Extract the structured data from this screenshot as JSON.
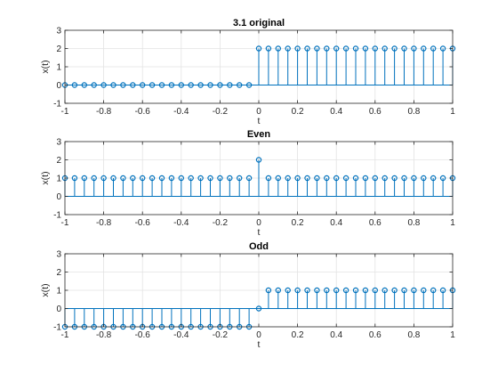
{
  "chart_data": [
    {
      "type": "stem",
      "title": "3.1 original",
      "xlabel": "t",
      "ylabel": "x(t)",
      "xlim": [
        -1,
        1
      ],
      "ylim": [
        -1,
        3
      ],
      "xticks": [
        -1,
        -0.8,
        -0.6,
        -0.4,
        -0.2,
        0,
        0.2,
        0.4,
        0.6,
        0.8,
        1
      ],
      "xtick_labels": [
        "-1",
        "-0.8",
        "-0.6",
        "-0.4",
        "-0.2",
        "0",
        "0.2",
        "0.4",
        "0.6",
        "0.8",
        "1"
      ],
      "yticks": [
        -1,
        0,
        1,
        2,
        3
      ],
      "ytick_labels": [
        "-1",
        "0",
        "1",
        "2",
        "3"
      ],
      "grid": true,
      "color": "#0072BD",
      "series": [
        {
          "x": [
            -1,
            -0.95,
            -0.9,
            -0.85,
            -0.8,
            -0.75,
            -0.7,
            -0.65,
            -0.6,
            -0.55,
            -0.5,
            -0.45,
            -0.4,
            -0.35,
            -0.3,
            -0.25,
            -0.2,
            -0.15,
            -0.1,
            -0.05,
            0,
            0.05,
            0.1,
            0.15,
            0.2,
            0.25,
            0.3,
            0.35,
            0.4,
            0.45,
            0.5,
            0.55,
            0.6,
            0.65,
            0.7,
            0.75,
            0.8,
            0.85,
            0.9,
            0.95,
            1
          ],
          "y": [
            0,
            0,
            0,
            0,
            0,
            0,
            0,
            0,
            0,
            0,
            0,
            0,
            0,
            0,
            0,
            0,
            0,
            0,
            0,
            0,
            2,
            2,
            2,
            2,
            2,
            2,
            2,
            2,
            2,
            2,
            2,
            2,
            2,
            2,
            2,
            2,
            2,
            2,
            2,
            2,
            2
          ]
        }
      ]
    },
    {
      "type": "stem",
      "title": "Even",
      "xlabel": "t",
      "ylabel": "x(t)",
      "xlim": [
        -1,
        1
      ],
      "ylim": [
        -1,
        3
      ],
      "xticks": [
        -1,
        -0.8,
        -0.6,
        -0.4,
        -0.2,
        0,
        0.2,
        0.4,
        0.6,
        0.8,
        1
      ],
      "xtick_labels": [
        "-1",
        "-0.8",
        "-0.6",
        "-0.4",
        "-0.2",
        "0",
        "0.2",
        "0.4",
        "0.6",
        "0.8",
        "1"
      ],
      "yticks": [
        -1,
        0,
        1,
        2,
        3
      ],
      "ytick_labels": [
        "-1",
        "0",
        "1",
        "2",
        "3"
      ],
      "grid": true,
      "color": "#0072BD",
      "series": [
        {
          "x": [
            -1,
            -0.95,
            -0.9,
            -0.85,
            -0.8,
            -0.75,
            -0.7,
            -0.65,
            -0.6,
            -0.55,
            -0.5,
            -0.45,
            -0.4,
            -0.35,
            -0.3,
            -0.25,
            -0.2,
            -0.15,
            -0.1,
            -0.05,
            0,
            0.05,
            0.1,
            0.15,
            0.2,
            0.25,
            0.3,
            0.35,
            0.4,
            0.45,
            0.5,
            0.55,
            0.6,
            0.65,
            0.7,
            0.75,
            0.8,
            0.85,
            0.9,
            0.95,
            1
          ],
          "y": [
            1,
            1,
            1,
            1,
            1,
            1,
            1,
            1,
            1,
            1,
            1,
            1,
            1,
            1,
            1,
            1,
            1,
            1,
            1,
            1,
            2,
            1,
            1,
            1,
            1,
            1,
            1,
            1,
            1,
            1,
            1,
            1,
            1,
            1,
            1,
            1,
            1,
            1,
            1,
            1,
            1
          ]
        }
      ]
    },
    {
      "type": "stem",
      "title": "Odd",
      "xlabel": "t",
      "ylabel": "x(t)",
      "xlim": [
        -1,
        1
      ],
      "ylim": [
        -1,
        3
      ],
      "xticks": [
        -1,
        -0.8,
        -0.6,
        -0.4,
        -0.2,
        0,
        0.2,
        0.4,
        0.6,
        0.8,
        1
      ],
      "xtick_labels": [
        "-1",
        "-0.8",
        "-0.6",
        "-0.4",
        "-0.2",
        "0",
        "0.2",
        "0.4",
        "0.6",
        "0.8",
        "1"
      ],
      "yticks": [
        -1,
        0,
        1,
        2,
        3
      ],
      "ytick_labels": [
        "-1",
        "0",
        "1",
        "2",
        "3"
      ],
      "grid": true,
      "color": "#0072BD",
      "series": [
        {
          "x": [
            -1,
            -0.95,
            -0.9,
            -0.85,
            -0.8,
            -0.75,
            -0.7,
            -0.65,
            -0.6,
            -0.55,
            -0.5,
            -0.45,
            -0.4,
            -0.35,
            -0.3,
            -0.25,
            -0.2,
            -0.15,
            -0.1,
            -0.05,
            0,
            0.05,
            0.1,
            0.15,
            0.2,
            0.25,
            0.3,
            0.35,
            0.4,
            0.45,
            0.5,
            0.55,
            0.6,
            0.65,
            0.7,
            0.75,
            0.8,
            0.85,
            0.9,
            0.95,
            1
          ],
          "y": [
            -1,
            -1,
            -1,
            -1,
            -1,
            -1,
            -1,
            -1,
            -1,
            -1,
            -1,
            -1,
            -1,
            -1,
            -1,
            -1,
            -1,
            -1,
            -1,
            -1,
            0,
            1,
            1,
            1,
            1,
            1,
            1,
            1,
            1,
            1,
            1,
            1,
            1,
            1,
            1,
            1,
            1,
            1,
            1,
            1,
            1
          ]
        }
      ]
    }
  ]
}
